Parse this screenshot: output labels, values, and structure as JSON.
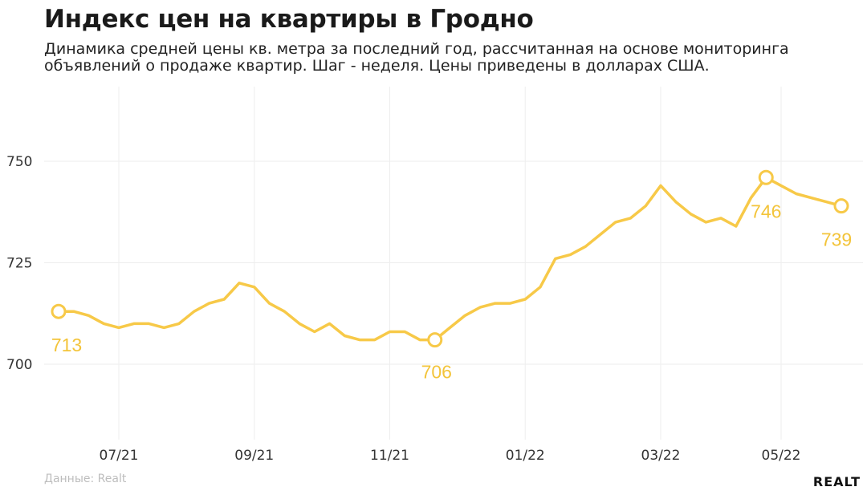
{
  "header": {
    "title": "Индекс цен на квартиры в Гродно",
    "subtitle": "Динамика средней цены кв. метра за последний год, рассчитанная на основе мониторинга объявлений о продаже квартир. Шаг - неделя. Цены приведены в долларах США."
  },
  "footer": {
    "source": "Данные: Realt",
    "logo": "REALT"
  },
  "colors": {
    "line": "#f7c948",
    "label": "#f3c43a",
    "grid": "#eeeeee",
    "tick": "#333333"
  },
  "chart_data": {
    "type": "line",
    "title": "Индекс цен на квартиры в Гродно",
    "xlabel": "",
    "ylabel": "",
    "ylim": [
      682,
      768
    ],
    "yticks": [
      700,
      725,
      750
    ],
    "grid": true,
    "legend": "none",
    "x_tick_labels": [
      "07/21",
      "09/21",
      "11/21",
      "01/22",
      "03/22",
      "05/22"
    ],
    "x_tick_weeks": [
      4,
      13,
      22,
      31,
      40,
      48
    ],
    "series": [
      {
        "values": [
          713,
          713,
          712,
          710,
          709,
          710,
          710,
          709,
          710,
          713,
          715,
          716,
          720,
          719,
          715,
          713,
          710,
          708,
          710,
          707,
          706,
          706,
          708,
          708,
          706,
          706,
          709,
          712,
          714,
          715,
          715,
          716,
          719,
          726,
          727,
          729,
          732,
          735,
          736,
          739,
          744,
          740,
          737,
          735,
          736,
          734,
          741,
          746,
          744,
          742,
          741,
          740,
          739
        ]
      }
    ],
    "annotations": [
      {
        "index": 0,
        "value": 713,
        "text": "713"
      },
      {
        "index": 25,
        "value": 706,
        "text": "706"
      },
      {
        "index": 47,
        "value": 746,
        "text": "746"
      },
      {
        "index": 52,
        "value": 739,
        "text": "739"
      }
    ]
  }
}
